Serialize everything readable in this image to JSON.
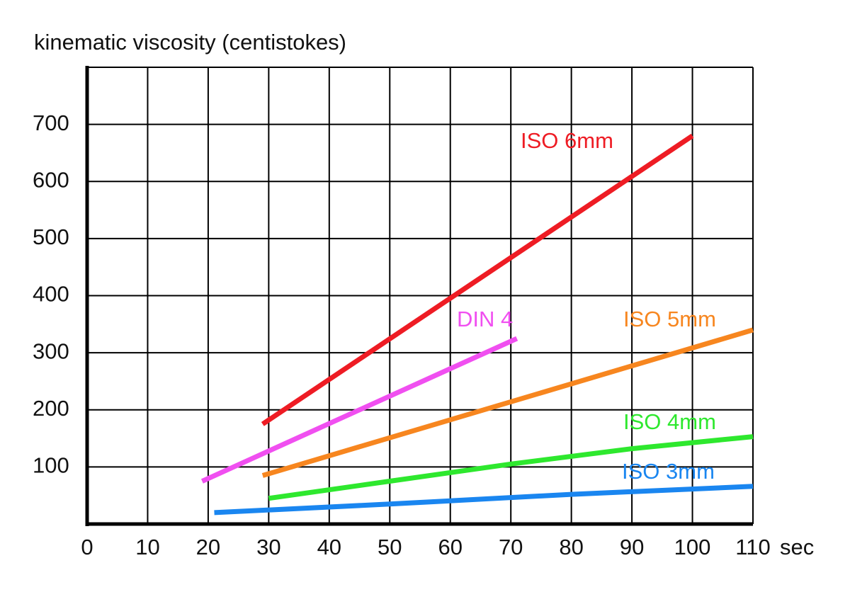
{
  "chart_data": {
    "type": "line",
    "y_axis_label": "kinematic viscosity (centistokes)",
    "x_axis_unit": "sec",
    "xlim": [
      0,
      110
    ],
    "ylim": [
      0,
      800
    ],
    "xticks": [
      0,
      10,
      20,
      30,
      40,
      50,
      60,
      70,
      80,
      90,
      100,
      110
    ],
    "yticks": [
      100,
      200,
      300,
      400,
      500,
      600,
      700
    ],
    "grid": true,
    "series": [
      {
        "name": "ISO 6mm",
        "color": "#ee1c24",
        "x": [
          29,
          100
        ],
        "values": [
          175,
          680
        ]
      },
      {
        "name": "DIN 4",
        "color": "#f04ff0",
        "x": [
          19,
          71
        ],
        "values": [
          75,
          325
        ]
      },
      {
        "name": "ISO 5mm",
        "color": "#f7861f",
        "x": [
          29,
          110
        ],
        "values": [
          85,
          340
        ]
      },
      {
        "name": "ISO 4mm",
        "color": "#2ee82e",
        "x": [
          30,
          50,
          70,
          90,
          110
        ],
        "values": [
          45,
          75,
          105,
          132,
          153
        ]
      },
      {
        "name": "ISO 3mm",
        "color": "#1a86f0",
        "x": [
          21,
          50,
          80,
          110
        ],
        "values": [
          20,
          35,
          52,
          66
        ]
      }
    ]
  }
}
